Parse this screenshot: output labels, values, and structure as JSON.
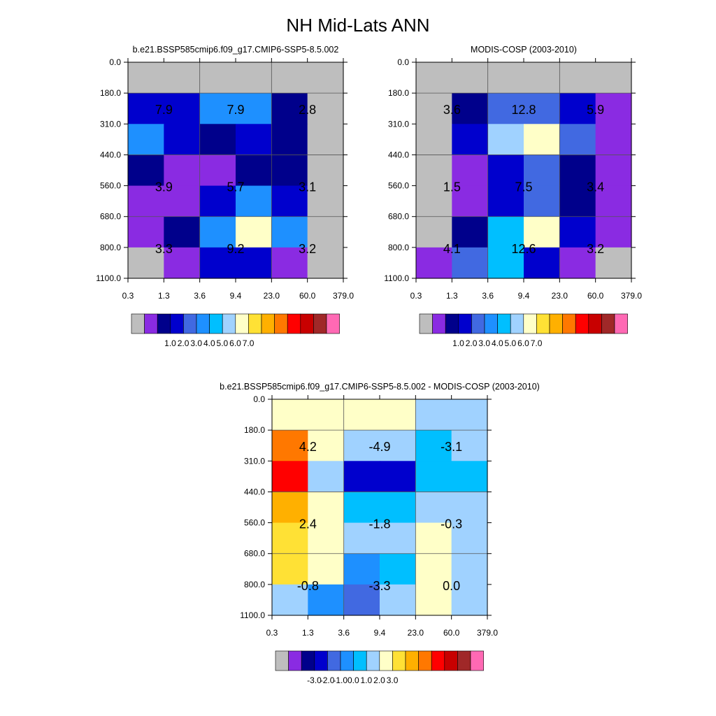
{
  "figure_title": "NH Mid-Lats ANN",
  "chart_data": [
    {
      "type": "heatmap",
      "title": "b.e21.BSSP585cmip6.f09_g17.CMIP6-SSP5-8.5.002",
      "x_tick_labels": [
        "0.3",
        "1.3",
        "3.6",
        "9.4",
        "23.0",
        "60.0",
        "379.0"
      ],
      "y_tick_labels": [
        "0.0",
        "180.0",
        "310.0",
        "440.0",
        "560.0",
        "680.0",
        "800.0",
        "1100.0"
      ],
      "grid": true,
      "cell_colors": [
        [
          0,
          0,
          0,
          0,
          0,
          0
        ],
        [
          3,
          3,
          5,
          5,
          2,
          0
        ],
        [
          5,
          3,
          2,
          3,
          2,
          0
        ],
        [
          2,
          1,
          1,
          2,
          2,
          0
        ],
        [
          1,
          1,
          3,
          5,
          3,
          0
        ],
        [
          1,
          2,
          5,
          8,
          5,
          0
        ],
        [
          0,
          1,
          3,
          3,
          1,
          0
        ]
      ],
      "block_labels": [
        [
          "7.9",
          "7.9",
          "2.8"
        ],
        [
          "3.9",
          "5.7",
          "3.1"
        ],
        [
          "3.3",
          "9.2",
          "3.2"
        ]
      ],
      "colorbar": {
        "colors": [
          "#bebebe",
          "#8a2be2",
          "#00008b",
          "#0000cd",
          "#4169e1",
          "#1e90ff",
          "#00bfff",
          "#a0d2ff",
          "#ffffc8",
          "#ffe135",
          "#ffb000",
          "#ff7800",
          "#ff0000",
          "#c80000",
          "#a02828",
          "#ff69b4"
        ],
        "tick_labels": [
          "1.0",
          "2.0",
          "3.0",
          "4.0",
          "5.0",
          "6.0",
          "7.0"
        ]
      }
    },
    {
      "type": "heatmap",
      "title": "MODIS-COSP (2003-2010)",
      "x_tick_labels": [
        "0.3",
        "1.3",
        "3.6",
        "9.4",
        "23.0",
        "60.0",
        "379.0"
      ],
      "y_tick_labels": [
        "0.0",
        "180.0",
        "310.0",
        "440.0",
        "560.0",
        "680.0",
        "800.0",
        "1100.0"
      ],
      "grid": true,
      "cell_colors": [
        [
          0,
          0,
          0,
          0,
          0,
          0
        ],
        [
          0,
          2,
          4,
          4,
          3,
          1
        ],
        [
          0,
          3,
          7,
          8,
          4,
          1
        ],
        [
          0,
          1,
          3,
          4,
          2,
          1
        ],
        [
          0,
          1,
          3,
          4,
          2,
          1
        ],
        [
          0,
          2,
          6,
          8,
          3,
          1
        ],
        [
          1,
          4,
          6,
          3,
          1,
          0
        ]
      ],
      "block_labels": [
        [
          "3.6",
          "12.8",
          "5.9"
        ],
        [
          "1.5",
          "7.5",
          "3.4"
        ],
        [
          "4.1",
          "12.6",
          "3.2"
        ]
      ],
      "colorbar": {
        "colors": [
          "#bebebe",
          "#8a2be2",
          "#00008b",
          "#0000cd",
          "#4169e1",
          "#1e90ff",
          "#00bfff",
          "#a0d2ff",
          "#ffffc8",
          "#ffe135",
          "#ffb000",
          "#ff7800",
          "#ff0000",
          "#c80000",
          "#a02828",
          "#ff69b4"
        ],
        "tick_labels": [
          "1.0",
          "2.0",
          "3.0",
          "4.0",
          "5.0",
          "6.0",
          "7.0"
        ]
      }
    },
    {
      "type": "heatmap",
      "title": "b.e21.BSSP585cmip6.f09_g17.CMIP6-SSP5-8.5.002 - MODIS-COSP (2003-2010)",
      "x_tick_labels": [
        "0.3",
        "1.3",
        "3.6",
        "9.4",
        "23.0",
        "60.0",
        "379.0"
      ],
      "y_tick_labels": [
        "0.0",
        "180.0",
        "310.0",
        "440.0",
        "560.0",
        "680.0",
        "800.0",
        "1100.0"
      ],
      "grid": true,
      "cell_colors": [
        [
          8,
          8,
          8,
          8,
          7,
          7
        ],
        [
          11,
          8,
          7,
          7,
          6,
          7
        ],
        [
          12,
          7,
          3,
          3,
          6,
          6
        ],
        [
          10,
          8,
          6,
          6,
          7,
          7
        ],
        [
          9,
          8,
          7,
          7,
          8,
          7
        ],
        [
          9,
          8,
          5,
          6,
          8,
          7
        ],
        [
          7,
          5,
          4,
          7,
          8,
          7
        ]
      ],
      "block_labels": [
        [
          "4.2",
          "-4.9",
          "-3.1"
        ],
        [
          "2.4",
          "-1.8",
          "-0.3"
        ],
        [
          "-0.8",
          "-3.3",
          "0.0"
        ]
      ],
      "colorbar": {
        "colors": [
          "#bebebe",
          "#8a2be2",
          "#00008b",
          "#0000cd",
          "#4169e1",
          "#1e90ff",
          "#00bfff",
          "#a0d2ff",
          "#ffffc8",
          "#ffe135",
          "#ffb000",
          "#ff7800",
          "#ff0000",
          "#c80000",
          "#a02828",
          "#ff69b4"
        ],
        "tick_labels": [
          "-3.0",
          "-2.0",
          "-1.0",
          "0.0",
          "1.0",
          "2.0",
          "3.0"
        ]
      }
    }
  ]
}
